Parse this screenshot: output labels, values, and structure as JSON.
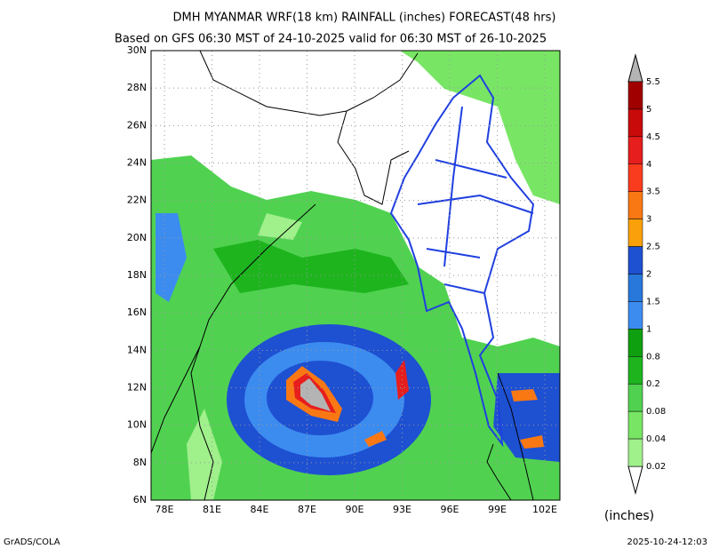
{
  "header": {
    "title": "DMH MYANMAR WRF(18 km) RAINFALL (inches) FORECAST(48 hrs)",
    "subtitle": "Based on GFS 06:30 MST of 24-10-2025 valid for 06:30 MST of 26-10-2025"
  },
  "map": {
    "lat_labels": [
      "30N",
      "28N",
      "26N",
      "24N",
      "22N",
      "20N",
      "18N",
      "16N",
      "14N",
      "12N",
      "10N",
      "8N",
      "6N"
    ],
    "lon_labels": [
      "78E",
      "81E",
      "84E",
      "87E",
      "90E",
      "93E",
      "96E",
      "99E",
      "102E"
    ]
  },
  "colorbar": {
    "labels": [
      "5.5",
      "5",
      "4.5",
      "4",
      "3.5",
      "3",
      "2.5",
      "2",
      "1.5",
      "1",
      "0.8",
      "0.2",
      "0.08",
      "0.04",
      "0.02"
    ],
    "unit": "(inches)"
  },
  "footer": {
    "left": "GrADS/COLA",
    "right": "2025-10-24-12:03"
  }
}
